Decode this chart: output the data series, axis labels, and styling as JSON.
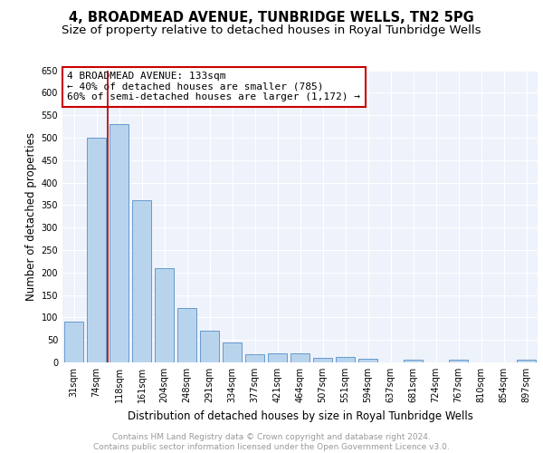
{
  "title1": "4, BROADMEAD AVENUE, TUNBRIDGE WELLS, TN2 5PG",
  "title2": "Size of property relative to detached houses in Royal Tunbridge Wells",
  "xlabel": "Distribution of detached houses by size in Royal Tunbridge Wells",
  "ylabel": "Number of detached properties",
  "footer1": "Contains HM Land Registry data © Crown copyright and database right 2024.",
  "footer2": "Contains public sector information licensed under the Open Government Licence v3.0.",
  "categories": [
    "31sqm",
    "74sqm",
    "118sqm",
    "161sqm",
    "204sqm",
    "248sqm",
    "291sqm",
    "334sqm",
    "377sqm",
    "421sqm",
    "464sqm",
    "507sqm",
    "551sqm",
    "594sqm",
    "637sqm",
    "681sqm",
    "724sqm",
    "767sqm",
    "810sqm",
    "854sqm",
    "897sqm"
  ],
  "values": [
    90,
    500,
    530,
    360,
    210,
    120,
    70,
    45,
    18,
    20,
    20,
    10,
    12,
    8,
    0,
    6,
    0,
    6,
    0,
    0,
    6
  ],
  "bar_color": "#b8d4ed",
  "bar_edge_color": "#6699cc",
  "annotation_line1": "4 BROADMEAD AVENUE: 133sqm",
  "annotation_line2": "← 40% of detached houses are smaller (785)",
  "annotation_line3": "60% of semi-detached houses are larger (1,172) →",
  "vline_color": "#aa0000",
  "box_edge_color": "#cc0000",
  "ylim_max": 650,
  "ytick_step": 50,
  "background_color": "#eef2fb",
  "grid_color": "#ffffff",
  "title1_fontsize": 10.5,
  "title2_fontsize": 9.5,
  "xlabel_fontsize": 8.5,
  "ylabel_fontsize": 8.5,
  "tick_fontsize": 7,
  "annotation_fontsize": 8,
  "footer_fontsize": 6.5,
  "footer_color": "#999999"
}
